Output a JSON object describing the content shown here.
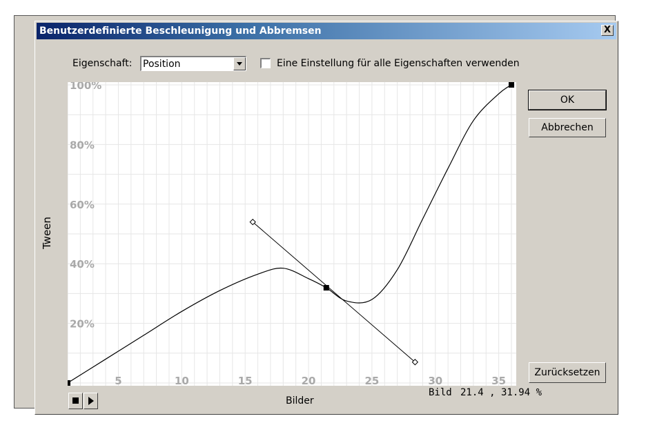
{
  "window": {
    "title": "Benutzerdefinierte Beschleunigung und Abbremsen",
    "close_label": "X"
  },
  "property": {
    "label": "Eigenschaft:",
    "selected": "Position",
    "checkbox_label": "Eine Einstellung für alle Eigenschaften verwenden",
    "checkbox_checked": false
  },
  "buttons": {
    "ok": "OK",
    "cancel": "Abbrechen",
    "reset": "Zurücksetzen"
  },
  "graph": {
    "ylabel": "Tween",
    "xlabel": "Bilder",
    "y_ticks": [
      "20%",
      "40%",
      "60%",
      "80%",
      "100%"
    ],
    "x_ticks": [
      "5",
      "10",
      "15",
      "20",
      "25",
      "30",
      "35"
    ],
    "status_label": "Bild",
    "status_value": "21.4 , 31.94 %"
  },
  "chart_data": {
    "type": "line",
    "xlim": [
      1,
      36
    ],
    "ylim": [
      0,
      100
    ],
    "grid": true,
    "control_points": [
      [
        1,
        0
      ],
      [
        21.4,
        31.94
      ],
      [
        36,
        100
      ]
    ],
    "tangent_handles": [
      [
        15.6,
        54
      ],
      [
        28.4,
        7
      ]
    ],
    "curve": [
      [
        1,
        0
      ],
      [
        4,
        8
      ],
      [
        7,
        16
      ],
      [
        10,
        24
      ],
      [
        13,
        31
      ],
      [
        16,
        36.5
      ],
      [
        18,
        38.5
      ],
      [
        20,
        35
      ],
      [
        21.4,
        31.94
      ],
      [
        23,
        27.5
      ],
      [
        25,
        28
      ],
      [
        27,
        38
      ],
      [
        29,
        55
      ],
      [
        31,
        72
      ],
      [
        33,
        88
      ],
      [
        35,
        97
      ],
      [
        36,
        100
      ]
    ]
  }
}
